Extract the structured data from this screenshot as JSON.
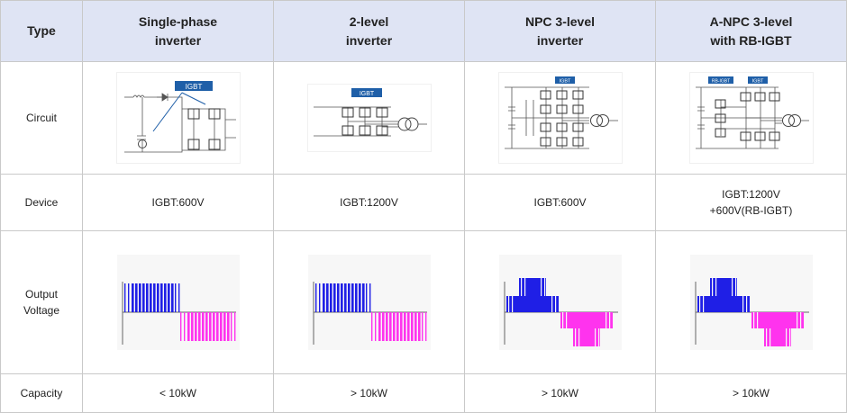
{
  "header": {
    "type": "Type",
    "columns": [
      {
        "line1": "Single-phase",
        "line2": "inverter"
      },
      {
        "line1": "2-level",
        "line2": "inverter"
      },
      {
        "line1": "NPC 3-level",
        "line2": "inverter"
      },
      {
        "line1": "A-NPC 3-level",
        "line2": "with RB-IGBT"
      }
    ]
  },
  "rows": {
    "circuit": "Circuit",
    "device": "Device",
    "output_line1": "Output",
    "output_line2": "Voltage",
    "capacity": "Capacity"
  },
  "circuit_labels": {
    "igbt": "IGBT",
    "rb_igbt": "RB-IGBT"
  },
  "device": [
    {
      "line1": "IGBT:600V",
      "line2": ""
    },
    {
      "line1": "IGBT:1200V",
      "line2": ""
    },
    {
      "line1": "IGBT:600V",
      "line2": ""
    },
    {
      "line1": "IGBT:1200V",
      "line2": "+600V(RB-IGBT)"
    }
  ],
  "capacity": [
    "< 10kW",
    "> 10kW",
    "> 10kW",
    "> 10kW"
  ],
  "colors": {
    "header_bg": "#dfe4f4",
    "border": "#c9c9c9",
    "positive_pulse": "#1f1fe6",
    "negative_pulse": "#ff33ee",
    "igbt_label_bg": "#1f5fa8"
  }
}
